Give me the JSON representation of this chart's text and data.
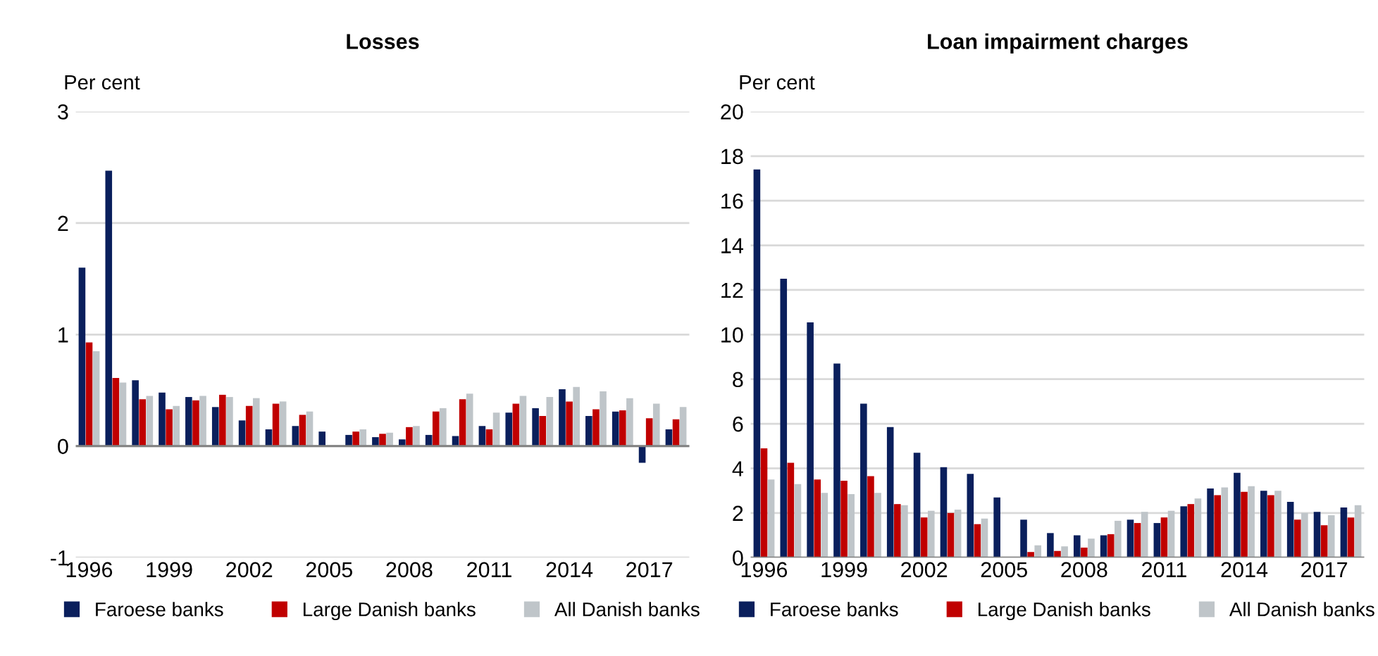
{
  "chart_data": [
    {
      "type": "bar",
      "title": "Losses",
      "ylabel": "Per cent",
      "categories": [
        "1996",
        null,
        null,
        "1999",
        null,
        null,
        "2002",
        null,
        null,
        "2005",
        null,
        null,
        "2008",
        null,
        null,
        "2011",
        null,
        null,
        "2014",
        null,
        null,
        "2017",
        null
      ],
      "series": [
        {
          "name": "Faroese banks",
          "color": "#0a1f5c",
          "values": [
            1.6,
            2.47,
            0.59,
            0.48,
            0.44,
            0.35,
            0.23,
            0.15,
            0.18,
            0.13,
            0.1,
            0.08,
            0.06,
            0.1,
            0.09,
            0.18,
            0.3,
            0.34,
            0.51,
            0.27,
            0.31,
            -0.15,
            0.15
          ]
        },
        {
          "name": "Large Danish banks",
          "color": "#c00000",
          "values": [
            0.93,
            0.61,
            0.42,
            0.33,
            0.41,
            0.46,
            0.36,
            0.38,
            0.28,
            null,
            0.13,
            0.11,
            0.17,
            0.31,
            0.42,
            0.15,
            0.38,
            0.27,
            0.4,
            0.33,
            0.32,
            0.25,
            0.24
          ]
        },
        {
          "name": "All Danish banks",
          "color": "#bfc5c9",
          "values": [
            0.85,
            0.57,
            0.45,
            0.36,
            0.45,
            0.44,
            0.43,
            0.4,
            0.31,
            null,
            0.15,
            0.12,
            0.18,
            0.34,
            0.47,
            0.3,
            0.45,
            0.44,
            0.53,
            0.49,
            0.43,
            0.38,
            0.35
          ]
        }
      ],
      "ylim": [
        -1,
        3
      ],
      "yticks": [
        -1,
        0,
        1,
        2,
        3
      ],
      "grid": "y",
      "legend": "bottom"
    },
    {
      "type": "bar",
      "title": "Loan impairment charges",
      "ylabel": "Per cent",
      "categories": [
        "1996",
        null,
        null,
        "1999",
        null,
        null,
        "2002",
        null,
        null,
        "2005",
        null,
        null,
        "2008",
        null,
        null,
        "2011",
        null,
        null,
        "2014",
        null,
        null,
        "2017",
        null
      ],
      "series": [
        {
          "name": "Faroese banks",
          "color": "#0a1f5c",
          "values": [
            17.4,
            12.5,
            10.55,
            8.7,
            6.9,
            5.85,
            4.7,
            4.05,
            3.75,
            2.7,
            1.7,
            1.1,
            1.0,
            1.0,
            1.7,
            1.55,
            2.3,
            3.1,
            3.8,
            3.0,
            2.5,
            2.05,
            2.25
          ]
        },
        {
          "name": "Large Danish banks",
          "color": "#c00000",
          "values": [
            4.9,
            4.25,
            3.5,
            3.45,
            3.65,
            2.4,
            1.8,
            2.0,
            1.5,
            null,
            0.25,
            0.3,
            0.45,
            1.05,
            1.55,
            1.8,
            2.4,
            2.8,
            2.95,
            2.8,
            1.7,
            1.45,
            1.8
          ]
        },
        {
          "name": "All Danish banks",
          "color": "#bfc5c9",
          "values": [
            3.5,
            3.3,
            2.9,
            2.85,
            2.9,
            2.35,
            2.1,
            2.15,
            1.75,
            null,
            0.55,
            0.5,
            0.85,
            1.65,
            2.05,
            2.1,
            2.65,
            3.15,
            3.2,
            3.0,
            2.0,
            1.9,
            2.35
          ]
        }
      ],
      "ylim": [
        0,
        20
      ],
      "yticks": [
        0,
        2,
        4,
        6,
        8,
        10,
        12,
        14,
        16,
        18,
        20
      ],
      "grid": "y",
      "legend": "bottom"
    }
  ]
}
